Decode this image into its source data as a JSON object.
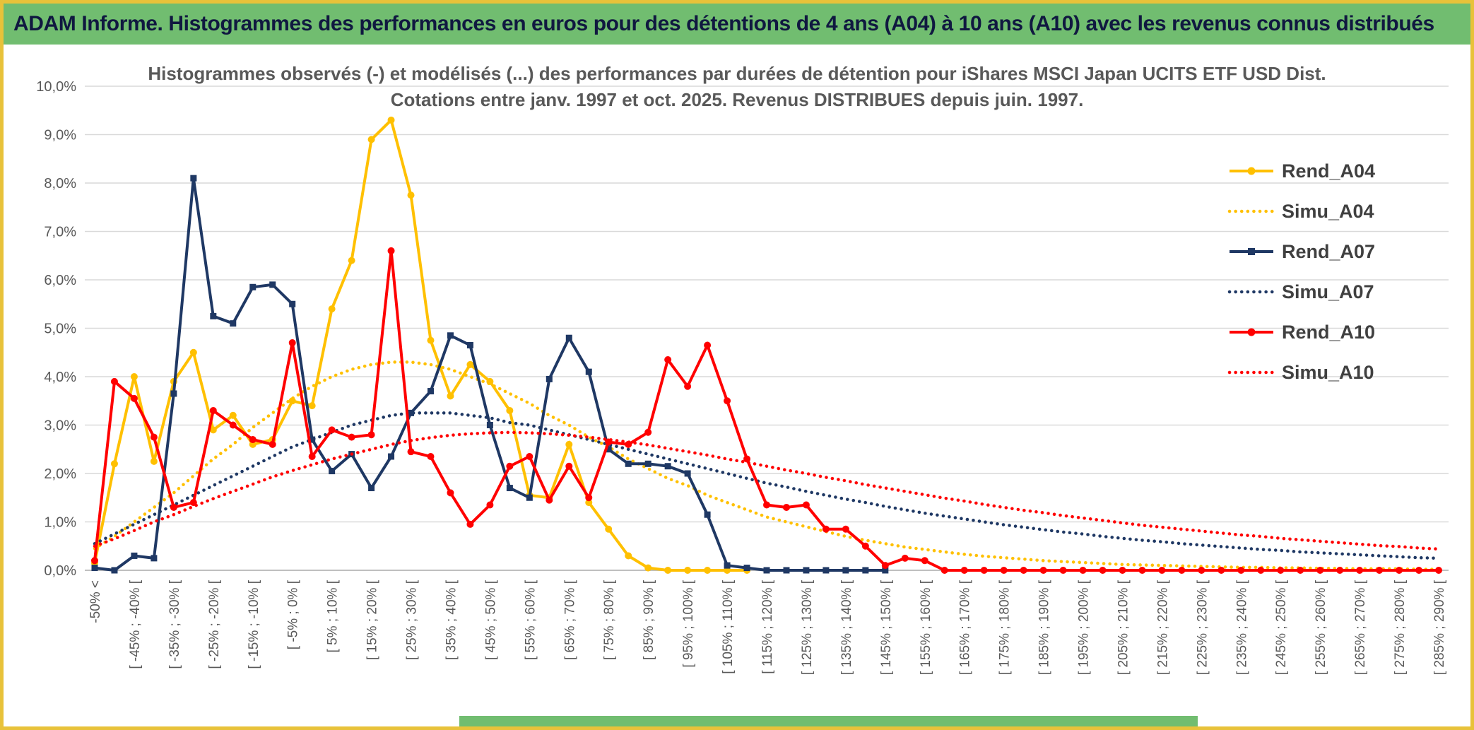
{
  "header": {
    "title": "ADAM Informe. Histogrammes des performances en euros pour des détentions de 4 ans (A04) à 10 ans (A10) avec les revenus connus distribués"
  },
  "colors": {
    "header_bg": "#71BD70",
    "page_border": "#E8C23A",
    "grid": "#D9D9D9",
    "axis_line": "#BFBFBF",
    "axis_text": "#595959",
    "title_text": "#595959",
    "gold": "#FFC000",
    "navy": "#1F3864",
    "red": "#FF0000"
  },
  "chart_data": {
    "type": "line",
    "title_line1": "Histogrammes observés (-) et modélisés (...) des performances par durées de détention pour iShares MSCI Japan UCITS ETF USD Dist.",
    "title_line2": "Cotations entre janv. 1997 et oct. 2025. Revenus DISTRIBUES depuis juin. 1997.",
    "xlabel": "",
    "ylabel": "",
    "y_max": 10,
    "y_tick_labels": [
      "0,0%",
      "1,0%",
      "2,0%",
      "3,0%",
      "4,0%",
      "5,0%",
      "6,0%",
      "7,0%",
      "8,0%",
      "9,0%",
      "10,0%"
    ],
    "grid": "horizontal",
    "legend_position": "right-inside",
    "bin_count": 69,
    "x_tick_every": 2,
    "x_tick_labels": [
      "-50% <",
      "[ -45% ; -40% [",
      "[ -35% ; -30% [",
      "[ -25% ; -20% [",
      "[ -15% ; -10% [",
      "[ -5% ; 0% [",
      "[ 5% ; 10% [",
      "[ 15% ; 20% [",
      "[ 25% ; 30% [",
      "[ 35% ; 40% [",
      "[ 45% ; 50% [",
      "[ 55% ; 60% [",
      "[ 65% ; 70% [",
      "[ 75% ; 80% [",
      "[ 85% ; 90% [",
      "[ 95% ; 100% [",
      "[ 105% ; 110% [",
      "[ 115% ; 120% [",
      "[ 125% ; 130% [",
      "[ 135% ; 140% [",
      "[ 145% ; 150% [",
      "[ 155% ; 160% [",
      "[ 165% ; 170% [",
      "[ 175% ; 180% [",
      "[ 185% ; 190% [",
      "[ 195% ; 200% [",
      "[ 205% ; 210% [",
      "[ 215% ; 220% [",
      "[ 225% ; 230% [",
      "[ 235% ; 240% [",
      "[ 245% ; 250% [",
      "[ 255% ; 260% [",
      "[ 265% ; 270% [",
      "[ 275% ; 280% [",
      "[ 285% ; 290% ["
    ],
    "series": [
      {
        "name": "Rend_A04",
        "style": "solid",
        "marker": "circle",
        "color": "#FFC000",
        "values": [
          0.15,
          2.2,
          4.0,
          2.25,
          3.9,
          4.5,
          2.9,
          3.2,
          2.6,
          2.7,
          3.5,
          3.4,
          5.4,
          6.4,
          8.9,
          9.3,
          7.75,
          4.75,
          3.6,
          4.25,
          3.9,
          3.3,
          1.55,
          1.5,
          2.6,
          1.4,
          0.85,
          0.3,
          0.05,
          0,
          0,
          0,
          0,
          0,
          null,
          null,
          null,
          null,
          null,
          null,
          null,
          null,
          null,
          null,
          null,
          null,
          null,
          null,
          null,
          null,
          null,
          null,
          null,
          null,
          null,
          null,
          null,
          null,
          null,
          null,
          null,
          null,
          null,
          null,
          null,
          null,
          null,
          null,
          null
        ]
      },
      {
        "name": "Simu_A04",
        "style": "dotted",
        "marker": "none",
        "color": "#FFC000",
        "values": [
          0.45,
          0.7,
          1.0,
          1.3,
          1.6,
          1.95,
          2.3,
          2.6,
          2.95,
          3.25,
          3.55,
          3.8,
          4.0,
          4.15,
          4.25,
          4.3,
          4.3,
          4.25,
          4.15,
          4.0,
          3.85,
          3.65,
          3.45,
          3.2,
          3.0,
          2.75,
          2.55,
          2.3,
          2.1,
          1.9,
          1.75,
          1.55,
          1.4,
          1.25,
          1.1,
          1.0,
          0.9,
          0.8,
          0.7,
          0.62,
          0.55,
          0.48,
          0.43,
          0.38,
          0.33,
          0.29,
          0.26,
          0.23,
          0.2,
          0.18,
          0.16,
          0.14,
          0.12,
          0.11,
          0.1,
          0.09,
          0.08,
          0.07,
          0.06,
          0.06,
          0.05,
          0.05,
          0.04,
          0.04,
          0.03,
          0.03,
          0.03,
          0.02,
          0.02
        ]
      },
      {
        "name": "Rend_A07",
        "style": "solid",
        "marker": "square",
        "color": "#1F3864",
        "values": [
          0.05,
          0,
          0.3,
          0.25,
          3.65,
          8.1,
          5.25,
          5.1,
          5.85,
          5.9,
          5.5,
          2.7,
          2.05,
          2.4,
          1.7,
          2.35,
          3.25,
          3.7,
          4.85,
          4.65,
          3.0,
          1.7,
          1.5,
          3.95,
          4.8,
          4.1,
          2.5,
          2.2,
          2.2,
          2.15,
          2.0,
          1.15,
          0.1,
          0.05,
          0,
          0,
          0,
          0,
          0,
          0,
          0,
          null,
          null,
          null,
          null,
          null,
          null,
          null,
          null,
          null,
          null,
          null,
          null,
          null,
          null,
          null,
          null,
          null,
          null,
          null,
          null,
          null,
          null,
          null,
          null,
          null,
          null,
          null,
          null
        ]
      },
      {
        "name": "Simu_A07",
        "style": "dotted",
        "marker": "none",
        "color": "#1F3864",
        "values": [
          0.55,
          0.75,
          0.95,
          1.15,
          1.35,
          1.55,
          1.75,
          1.95,
          2.15,
          2.35,
          2.55,
          2.7,
          2.85,
          3.0,
          3.1,
          3.2,
          3.25,
          3.25,
          3.25,
          3.2,
          3.15,
          3.05,
          3.0,
          2.9,
          2.8,
          2.7,
          2.6,
          2.5,
          2.4,
          2.3,
          2.2,
          2.1,
          2.0,
          1.9,
          1.8,
          1.72,
          1.63,
          1.55,
          1.47,
          1.4,
          1.32,
          1.25,
          1.18,
          1.12,
          1.06,
          1.0,
          0.94,
          0.89,
          0.84,
          0.79,
          0.75,
          0.7,
          0.66,
          0.62,
          0.59,
          0.55,
          0.52,
          0.49,
          0.46,
          0.43,
          0.41,
          0.38,
          0.36,
          0.34,
          0.32,
          0.3,
          0.28,
          0.26,
          0.25
        ]
      },
      {
        "name": "Rend_A10",
        "style": "solid",
        "marker": "circle",
        "color": "#FF0000",
        "values": [
          0.2,
          3.9,
          3.55,
          2.75,
          1.3,
          1.4,
          3.3,
          3.0,
          2.7,
          2.6,
          4.7,
          2.35,
          2.9,
          2.75,
          2.8,
          6.6,
          2.45,
          2.35,
          1.6,
          0.95,
          1.35,
          2.15,
          2.35,
          1.45,
          2.15,
          1.5,
          2.65,
          2.6,
          2.85,
          4.35,
          3.8,
          4.65,
          3.5,
          2.3,
          1.35,
          1.3,
          1.35,
          0.85,
          0.85,
          0.5,
          0.1,
          0.25,
          0.2,
          0,
          0,
          0,
          0,
          0,
          0,
          0,
          0,
          0,
          0,
          0,
          0,
          0,
          0,
          0,
          0,
          0,
          0,
          0,
          0,
          0,
          0,
          0,
          0,
          0,
          0
        ]
      },
      {
        "name": "Simu_A10",
        "style": "dotted",
        "marker": "none",
        "color": "#FF0000",
        "values": [
          0.5,
          0.65,
          0.82,
          1.0,
          1.15,
          1.32,
          1.48,
          1.63,
          1.78,
          1.93,
          2.06,
          2.18,
          2.3,
          2.4,
          2.5,
          2.6,
          2.68,
          2.74,
          2.79,
          2.82,
          2.84,
          2.85,
          2.84,
          2.82,
          2.79,
          2.75,
          2.7,
          2.65,
          2.59,
          2.52,
          2.45,
          2.38,
          2.3,
          2.23,
          2.15,
          2.07,
          2.0,
          1.92,
          1.85,
          1.77,
          1.7,
          1.63,
          1.56,
          1.49,
          1.43,
          1.36,
          1.3,
          1.24,
          1.19,
          1.13,
          1.08,
          1.03,
          0.98,
          0.93,
          0.89,
          0.85,
          0.81,
          0.77,
          0.73,
          0.7,
          0.66,
          0.63,
          0.6,
          0.57,
          0.54,
          0.51,
          0.49,
          0.46,
          0.44
        ]
      }
    ]
  }
}
